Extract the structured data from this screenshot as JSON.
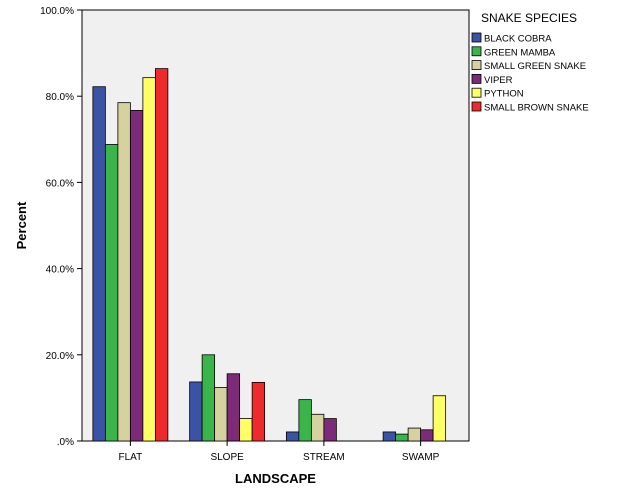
{
  "chart_data": {
    "type": "bar",
    "xlabel": "LANDSCAPE",
    "ylabel": "Percent",
    "ylim": [
      0,
      100
    ],
    "yticks": [
      0,
      20,
      40,
      60,
      80,
      100
    ],
    "ytick_labels": [
      ".0%",
      "20.0%",
      "40.0%",
      "60.0%",
      "80.0%",
      "100.0%"
    ],
    "categories": [
      "FLAT",
      "SLOPE",
      "STREAM",
      "SWAMP"
    ],
    "legend_title": "SNAKE SPECIES",
    "legend_position": "right",
    "grid": false,
    "plot_background": "#f0f0f0",
    "series": [
      {
        "name": "BLACK COBRA",
        "color": "#3b53a4",
        "values": [
          82.2,
          13.7,
          2.1,
          2.1
        ]
      },
      {
        "name": "GREEN MAMBA",
        "color": "#3ab54a",
        "values": [
          68.8,
          20.0,
          9.6,
          1.6
        ]
      },
      {
        "name": "SMALL GREEN SNAKE",
        "color": "#d6d2a0",
        "values": [
          78.5,
          12.4,
          6.2,
          3.0
        ]
      },
      {
        "name": "VIPER",
        "color": "#7d2a78",
        "values": [
          76.7,
          15.6,
          5.2,
          2.6
        ]
      },
      {
        "name": "PYTHON",
        "color": "#ffff66",
        "values": [
          84.3,
          5.2,
          0,
          10.5
        ]
      },
      {
        "name": "SMALL BROWN SNAKE",
        "color": "#ee2a2d",
        "values": [
          86.4,
          13.6,
          0,
          0
        ]
      }
    ]
  }
}
